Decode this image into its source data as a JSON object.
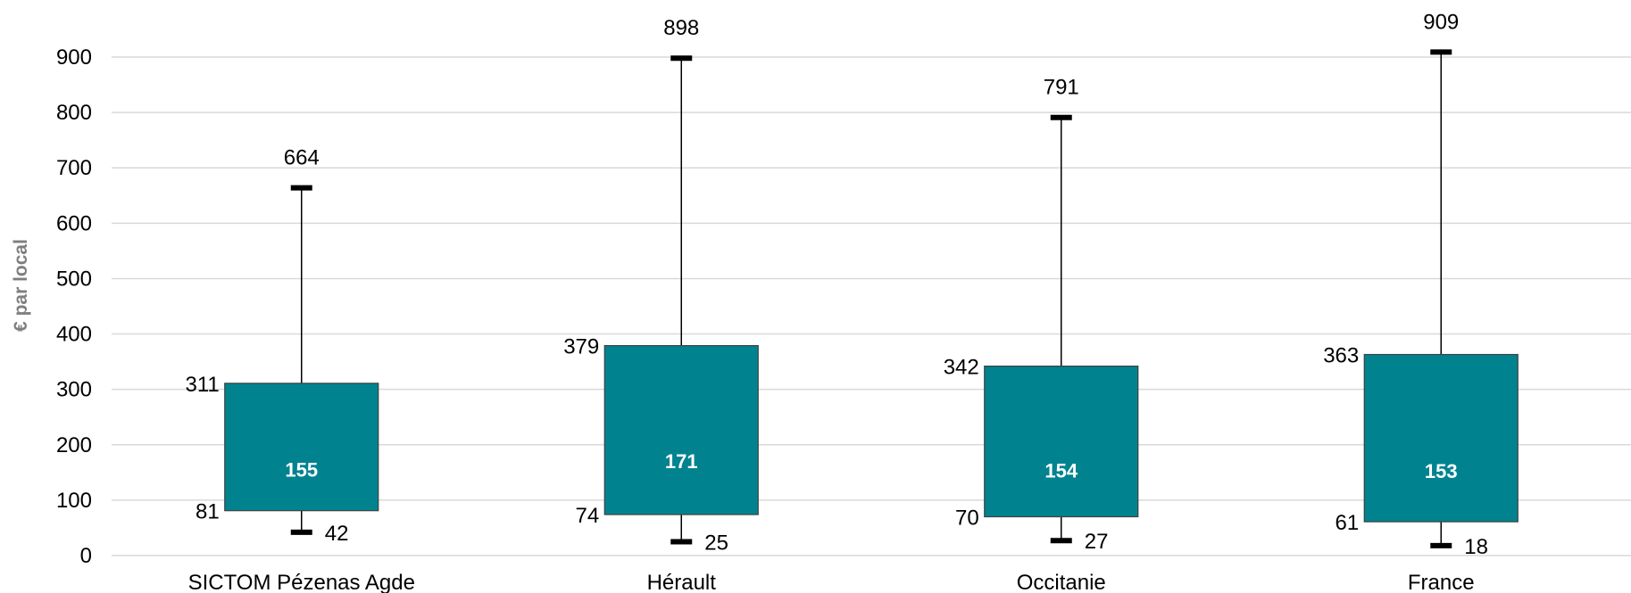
{
  "chart_data": {
    "type": "box",
    "ylabel": "€ par local",
    "ylim": [
      0,
      900
    ],
    "yticks": [
      0,
      100,
      200,
      300,
      400,
      500,
      600,
      700,
      800,
      900
    ],
    "grid": true,
    "box_color": "#00838F",
    "categories": [
      "SICTOM Pézenas Agde",
      "Hérault",
      "Occitanie",
      "France"
    ],
    "series": [
      {
        "category": "SICTOM Pézenas Agde",
        "min": 42,
        "q1": 81,
        "mid": 155,
        "q3": 311,
        "max": 664
      },
      {
        "category": "Hérault",
        "min": 25,
        "q1": 74,
        "mid": 171,
        "q3": 379,
        "max": 898
      },
      {
        "category": "Occitanie",
        "min": 27,
        "q1": 70,
        "mid": 154,
        "q3": 342,
        "max": 791
      },
      {
        "category": "France",
        "min": 18,
        "q1": 61,
        "mid": 153,
        "q3": 363,
        "max": 909
      }
    ]
  }
}
